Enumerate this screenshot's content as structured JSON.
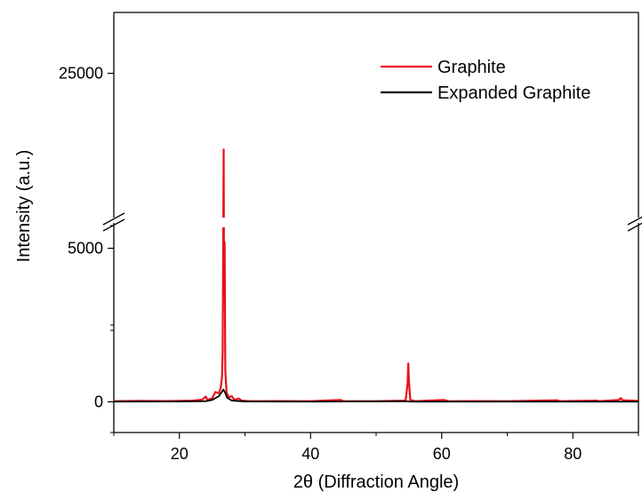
{
  "chart_data": {
    "type": "line",
    "xlabel": "2θ (Diffraction Angle)",
    "ylabel": "Intensity (a.u.)",
    "xlim": [
      10,
      90
    ],
    "x_ticks": [
      "20",
      "40",
      "60",
      "80"
    ],
    "y_axis_break": {
      "lower_range": [
        -1000,
        6000
      ],
      "upper_range": [
        20000,
        27000
      ]
    },
    "y_ticks_lower": [
      "0",
      "5000"
    ],
    "y_ticks_upper": [
      "25000"
    ],
    "legend_position": "top-right",
    "series": [
      {
        "name": "Graphite",
        "color": "#e8111a",
        "points": [
          [
            10,
            20
          ],
          [
            14,
            30
          ],
          [
            18,
            25
          ],
          [
            22,
            40
          ],
          [
            23.5,
            70
          ],
          [
            24.0,
            170
          ],
          [
            24.3,
            60
          ],
          [
            25.0,
            120
          ],
          [
            25.5,
            320
          ],
          [
            26.0,
            280
          ],
          [
            26.3,
            450
          ],
          [
            26.5,
            800
          ],
          [
            26.6,
            1700
          ],
          [
            26.7,
            6000
          ],
          [
            26.75,
            22500
          ],
          [
            26.8,
            19000
          ],
          [
            26.9,
            5200
          ],
          [
            27.0,
            1000
          ],
          [
            27.2,
            300
          ],
          [
            27.5,
            150
          ],
          [
            28.0,
            180
          ],
          [
            28.4,
            60
          ],
          [
            29.0,
            110
          ],
          [
            29.5,
            40
          ],
          [
            31,
            20
          ],
          [
            35,
            25
          ],
          [
            40,
            20
          ],
          [
            44.6,
            60
          ],
          [
            45,
            20
          ],
          [
            50,
            20
          ],
          [
            54.5,
            40
          ],
          [
            54.8,
            600
          ],
          [
            54.9,
            1250
          ],
          [
            55.0,
            700
          ],
          [
            55.2,
            60
          ],
          [
            56,
            20
          ],
          [
            60.3,
            60
          ],
          [
            61,
            20
          ],
          [
            65,
            25
          ],
          [
            70,
            20
          ],
          [
            77.6,
            50
          ],
          [
            78,
            20
          ],
          [
            83.7,
            40
          ],
          [
            84,
            20
          ],
          [
            87.0,
            60
          ],
          [
            87.3,
            120
          ],
          [
            87.6,
            50
          ],
          [
            90,
            30
          ]
        ]
      },
      {
        "name": "Expanded Graphite",
        "color": "#000000",
        "points": [
          [
            10,
            5
          ],
          [
            20,
            8
          ],
          [
            24,
            20
          ],
          [
            25,
            60
          ],
          [
            26,
            180
          ],
          [
            26.5,
            330
          ],
          [
            26.7,
            400
          ],
          [
            26.9,
            330
          ],
          [
            27.3,
            130
          ],
          [
            28,
            40
          ],
          [
            30,
            10
          ],
          [
            40,
            5
          ],
          [
            54.8,
            15
          ],
          [
            55.2,
            5
          ],
          [
            70,
            5
          ],
          [
            90,
            5
          ]
        ]
      }
    ]
  }
}
